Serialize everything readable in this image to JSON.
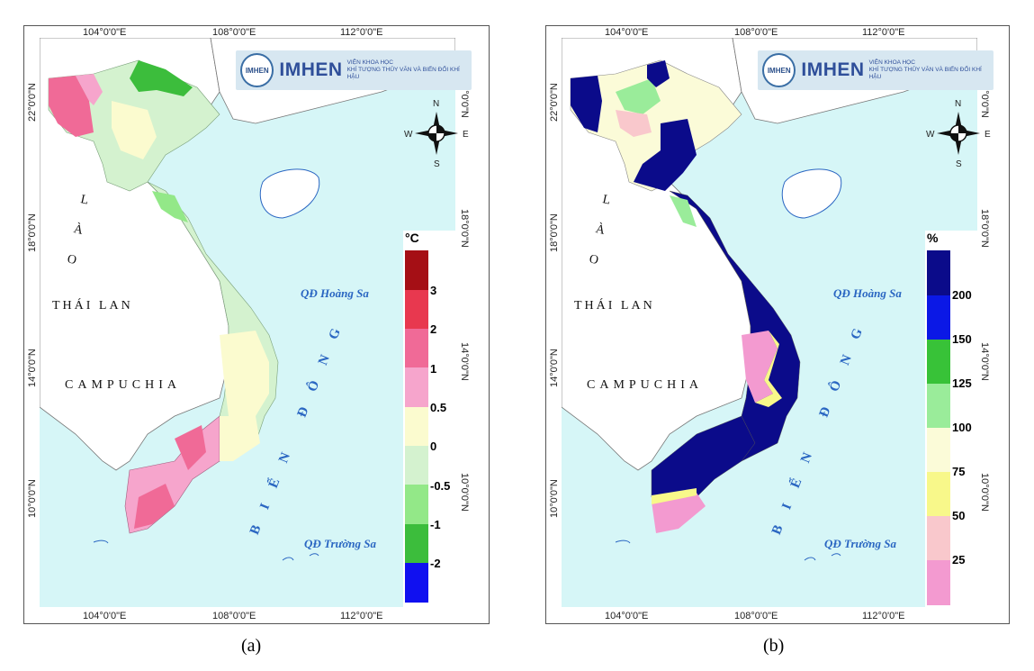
{
  "panels": [
    {
      "caption": "(a)",
      "logo": {
        "title": "IMHEN",
        "circle": "IMHEN",
        "sub1": "VIỆN KHOA HỌC",
        "sub2": "KHÍ TƯỢNG THỦY VĂN VÀ BIẾN ĐỔI KHÍ HẬU"
      },
      "coords": {
        "top": [
          "104°0'0\"E",
          "108°0'0\"E",
          "112°0'0\"E"
        ],
        "bottom": [
          "104°0'0\"E",
          "108°0'0\"E",
          "112°0'0\"E"
        ],
        "left": [
          "22°0'0\"N",
          "18°0'0\"N",
          "14°0'0\"N",
          "10°0'0\"N"
        ],
        "right": [
          "22°0'0\"N",
          "18°0'0\"N",
          "14°0'0\"N",
          "10°0'0\"N"
        ]
      },
      "labels": {
        "lao": "L À O",
        "thailan": "THÁI LAN",
        "campuchia": "CAMPUCHIA",
        "hoangsa": "QĐ Hoàng Sa",
        "truongsa": "QĐ Trường Sa",
        "biendong": "BIỂN ĐÔNG"
      },
      "compass": {
        "n": "N",
        "s": "S",
        "e": "E",
        "w": "W"
      },
      "legend": {
        "unit": "°C",
        "items": [
          {
            "color": "#a50f15",
            "label": ""
          },
          {
            "color": "#e8384f",
            "label": "3"
          },
          {
            "color": "#f06a97",
            "label": "2"
          },
          {
            "color": "#f6a5cc",
            "label": "1"
          },
          {
            "color": "#fbfbcf",
            "label": "0.5"
          },
          {
            "color": "#d4f2cf",
            "label": "0"
          },
          {
            "color": "#93e888",
            "label": "-0.5"
          },
          {
            "color": "#3cbd3c",
            "label": "-1"
          },
          {
            "color": "#1010f0",
            "label": "-2"
          }
        ]
      }
    },
    {
      "caption": "(b)",
      "logo": {
        "title": "IMHEN",
        "circle": "IMHEN",
        "sub1": "VIỆN KHOA HỌC",
        "sub2": "KHÍ TƯỢNG THỦY VĂN VÀ BIẾN ĐỔI KHÍ HẬU"
      },
      "coords": {
        "top": [
          "104°0'0\"E",
          "108°0'0\"E",
          "112°0'0\"E"
        ],
        "bottom": [
          "104°0'0\"E",
          "108°0'0\"E",
          "112°0'0\"E"
        ],
        "left": [
          "22°0'0\"N",
          "18°0'0\"N",
          "14°0'0\"N",
          "10°0'0\"N"
        ],
        "right": [
          "22°0'0\"N",
          "18°0'0\"N",
          "14°0'0\"N",
          "10°0'0\"N"
        ]
      },
      "labels": {
        "lao": "L À O",
        "thailan": "THÁI LAN",
        "campuchia": "CAMPUCHIA",
        "hoangsa": "QĐ Hoàng Sa",
        "truongsa": "QĐ Trường Sa",
        "biendong": "BIỂN ĐÔNG"
      },
      "compass": {
        "n": "N",
        "s": "S",
        "e": "E",
        "w": "W"
      },
      "legend": {
        "unit": "%",
        "items": [
          {
            "color": "#0b0b8a",
            "label": "200"
          },
          {
            "color": "#0b18e6",
            "label": "150"
          },
          {
            "color": "#38c238",
            "label": "125"
          },
          {
            "color": "#9aec9a",
            "label": "100"
          },
          {
            "color": "#fbfbd8",
            "label": "75"
          },
          {
            "color": "#f8f88a",
            "label": "50"
          },
          {
            "color": "#f9c8cc",
            "label": "25"
          },
          {
            "color": "#f39ad0",
            "label": ""
          }
        ]
      }
    }
  ]
}
